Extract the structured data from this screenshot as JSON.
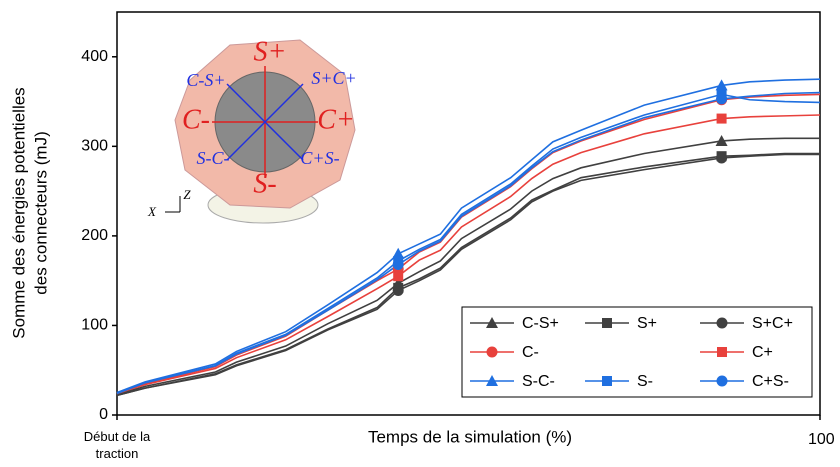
{
  "chart_data": {
    "type": "line",
    "x_label": "Temps de la simulation (%)",
    "y_label": [
      "Somme des énergies potentielles",
      "des connecteurs (mJ)"
    ],
    "x": [
      0,
      4,
      14,
      17,
      24,
      30,
      37,
      40,
      43,
      46,
      49,
      56,
      59,
      62,
      66,
      75,
      86,
      90,
      95,
      100
    ],
    "xlim": [
      0,
      100
    ],
    "xticks": [
      {
        "value": 0,
        "label": "Début de la traction"
      },
      100
    ],
    "ylim": [
      0,
      450
    ],
    "yticks": [
      0,
      100,
      200,
      300,
      400
    ],
    "marker_x": [
      40,
      86
    ],
    "series": [
      {
        "name": "C-S+",
        "color": "#404040",
        "marker": "triangle",
        "values": [
          23,
          32,
          48,
          59,
          77,
          102,
          128,
          147,
          160,
          172,
          197,
          230,
          250,
          264,
          276,
          292,
          306,
          308,
          309,
          309
        ]
      },
      {
        "name": "S+",
        "color": "#404040",
        "marker": "square",
        "values": [
          22,
          30,
          46,
          56,
          73,
          96,
          120,
          142,
          152,
          164,
          187,
          220,
          240,
          251,
          265,
          277,
          289,
          290,
          292,
          292
        ]
      },
      {
        "name": "S+C+",
        "color": "#404040",
        "marker": "circle",
        "values": [
          22,
          30,
          45,
          55,
          72,
          95,
          118,
          139,
          150,
          162,
          185,
          218,
          238,
          250,
          262,
          274,
          287,
          289,
          291,
          291
        ]
      },
      {
        "name": "C-",
        "color": "#e8413c",
        "marker": "circle",
        "values": [
          24,
          35,
          54,
          67,
          88,
          117,
          150,
          163,
          182,
          193,
          221,
          255,
          275,
          293,
          306,
          330,
          352,
          355,
          357,
          358
        ]
      },
      {
        "name": "C+",
        "color": "#e8413c",
        "marker": "square",
        "values": [
          24,
          34,
          52,
          64,
          84,
          110,
          141,
          155,
          173,
          184,
          210,
          244,
          264,
          280,
          293,
          314,
          331,
          333,
          334,
          335
        ]
      },
      {
        "name": "S-C-",
        "color": "#1f6fe0",
        "marker": "triangle",
        "values": [
          25,
          37,
          57,
          71,
          93,
          123,
          159,
          180,
          191,
          202,
          231,
          265,
          285,
          305,
          318,
          346,
          368,
          372,
          374,
          375
        ]
      },
      {
        "name": "S-",
        "color": "#1f6fe0",
        "marker": "square",
        "values": [
          25,
          36,
          55,
          69,
          90,
          119,
          153,
          172,
          185,
          196,
          224,
          258,
          278,
          297,
          310,
          335,
          358,
          352,
          350,
          349
        ]
      },
      {
        "name": "C+S-",
        "color": "#1f6fe0",
        "marker": "circle",
        "values": [
          24,
          36,
          55,
          68,
          89,
          117,
          151,
          168,
          183,
          194,
          222,
          256,
          276,
          294,
          307,
          332,
          353,
          356,
          359,
          360
        ]
      }
    ]
  },
  "inset": {
    "labels": [
      "S+",
      "S-",
      "C-",
      "C+",
      "C-S+",
      "S+C+",
      "S-C-",
      "C+S-"
    ],
    "axes": [
      "X",
      "Z"
    ]
  }
}
